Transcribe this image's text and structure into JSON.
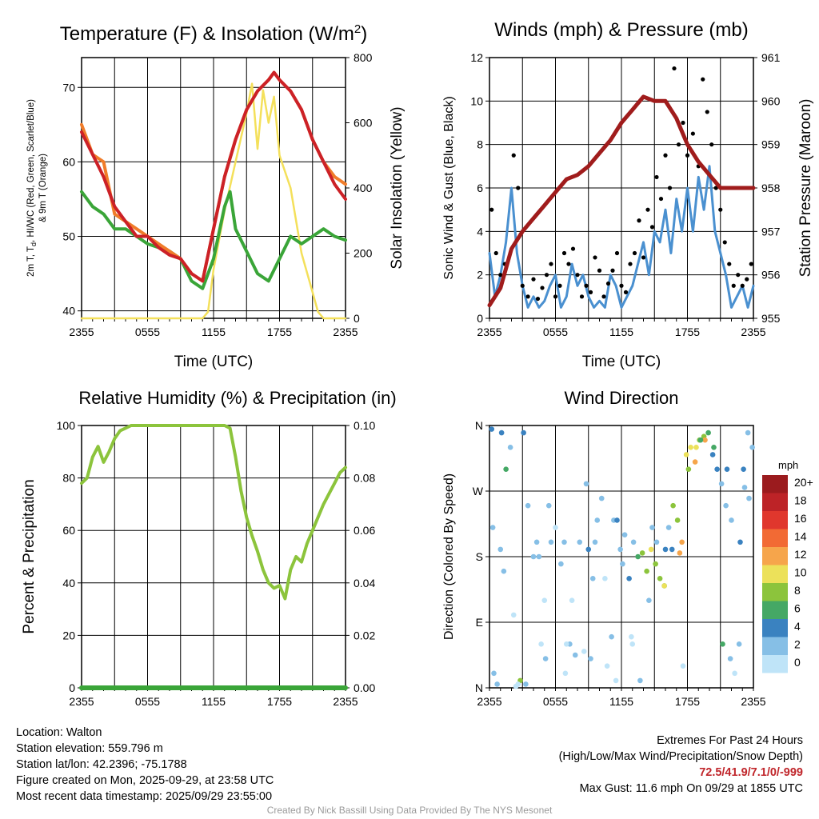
{
  "chart_data": [
    {
      "id": "temp",
      "type": "line",
      "title_text": "Temperature (F) & Insolation (W/m",
      "title_sup": "2",
      "title_close": ")",
      "xlabel": "Time (UTC)",
      "ylabel_lines": [
        "2m T, T",
        "d",
        ", HI/WC (Red, Green, Scarlet/Blue)",
        "& 9m T (Orange)"
      ],
      "ylabel_right": "Solar Insolation (Yellow)",
      "x_ticks": [
        "2355",
        "0555",
        "1155",
        "1755",
        "2355"
      ],
      "x_range": [
        0,
        24
      ],
      "ylim": [
        39,
        74
      ],
      "y_ticks": [
        40,
        50,
        60,
        70
      ],
      "ylim_right": [
        0,
        800
      ],
      "y_ticks_right": [
        0,
        200,
        400,
        600,
        800
      ],
      "series": [
        {
          "name": "9m T",
          "color": "#f07c2a",
          "axis": "left",
          "width": 4,
          "x": [
            0,
            1,
            2,
            3,
            4,
            5,
            6,
            7,
            8,
            9,
            10,
            11,
            12,
            13,
            14,
            15,
            16,
            17,
            17.5,
            18,
            19,
            20,
            21,
            22,
            23,
            24
          ],
          "y": [
            65,
            61,
            60,
            53,
            52,
            51,
            50,
            49,
            48,
            47,
            45,
            44,
            51,
            58,
            63,
            67,
            69.5,
            71,
            72,
            71,
            69.5,
            67,
            63,
            60,
            58,
            57
          ]
        },
        {
          "name": "2m T",
          "color": "#cc2127",
          "axis": "left",
          "width": 4,
          "x": [
            0,
            1,
            2,
            3,
            4,
            5,
            6,
            7,
            8,
            9,
            10,
            11,
            12,
            13,
            14,
            15,
            16,
            17,
            17.5,
            18,
            19,
            20,
            21,
            22,
            23,
            24
          ],
          "y": [
            64,
            61,
            58,
            54,
            52,
            50,
            50,
            48.5,
            47.5,
            47,
            45,
            44,
            51,
            58,
            63,
            67,
            69.5,
            71,
            72,
            71,
            69.5,
            67,
            63,
            60,
            57,
            55
          ]
        },
        {
          "name": "T d",
          "color": "#3aa538",
          "axis": "left",
          "width": 4,
          "x": [
            0,
            1,
            2,
            3,
            4,
            5,
            6,
            7,
            8,
            9,
            10,
            11,
            12,
            13,
            13.5,
            14,
            15,
            16,
            17,
            18,
            19,
            20,
            21,
            22,
            23,
            24
          ],
          "y": [
            56,
            54,
            53,
            51,
            51,
            50,
            49,
            48.5,
            48,
            47,
            44,
            43,
            47,
            54,
            56,
            51,
            48,
            45,
            44,
            47,
            50,
            49,
            50,
            51,
            50,
            49.5
          ]
        },
        {
          "name": "Solar Insolation",
          "color": "#f4e05b",
          "axis": "right",
          "width": 2.5,
          "x": [
            0,
            1,
            2,
            3,
            4,
            5,
            6,
            7,
            8,
            9,
            10,
            11,
            11.5,
            12,
            13,
            14,
            15,
            15.5,
            16,
            16.5,
            17,
            17.5,
            18,
            19,
            20,
            21,
            21.5,
            22,
            23,
            24
          ],
          "y": [
            0,
            0,
            0,
            0,
            0,
            0,
            0,
            0,
            0,
            0,
            0,
            0,
            20,
            150,
            330,
            480,
            630,
            720,
            520,
            700,
            600,
            680,
            500,
            400,
            200,
            80,
            20,
            0,
            0,
            0
          ]
        }
      ]
    },
    {
      "id": "wind",
      "type": "line",
      "title": "Winds (mph) & Pressure (mb)",
      "xlabel": "Time (UTC)",
      "ylabel": "Sonic Wind & Gust (Blue, Black)",
      "ylabel_right": "Station Pressure (Maroon)",
      "x_ticks": [
        "2355",
        "0555",
        "1155",
        "1755",
        "2355"
      ],
      "x_range": [
        0,
        24
      ],
      "ylim": [
        0,
        12
      ],
      "y_ticks": [
        0,
        2,
        4,
        6,
        8,
        10,
        12
      ],
      "ylim_right": [
        955,
        961
      ],
      "y_ticks_right": [
        955,
        956,
        957,
        958,
        959,
        960,
        961
      ],
      "series": [
        {
          "name": "Sonic Wind",
          "color": "#4a90d0",
          "axis": "left",
          "width": 3,
          "x": [
            0,
            0.5,
            1,
            1.5,
            2,
            2.5,
            3,
            3.5,
            4,
            4.5,
            5,
            5.5,
            6,
            6.5,
            7,
            7.5,
            8,
            8.5,
            9,
            9.5,
            10,
            10.5,
            11,
            11.5,
            12,
            12.5,
            13,
            13.5,
            14,
            14.5,
            15,
            15.5,
            16,
            16.5,
            17,
            17.5,
            18,
            18.5,
            19,
            19.5,
            20,
            20.5,
            21,
            21.5,
            22,
            22.5,
            23,
            23.5,
            24
          ],
          "y": [
            3,
            1,
            2,
            3.5,
            6,
            3,
            1.5,
            0.5,
            1,
            0.5,
            0.8,
            1.5,
            2,
            0.5,
            1,
            2.5,
            1.5,
            2,
            1,
            0.5,
            0.8,
            0.5,
            2,
            1.5,
            0.5,
            1,
            1.5,
            2.5,
            3.5,
            2,
            4,
            3.5,
            5,
            3,
            5.5,
            4,
            6,
            4,
            6.5,
            5,
            7,
            4,
            3,
            2,
            0.5,
            1,
            1.5,
            0.5,
            1.5
          ]
        },
        {
          "name": "Gust",
          "color": "#000000",
          "axis": "left",
          "kind": "points",
          "x": [
            0.2,
            0.6,
            1.0,
            1.4,
            2.2,
            2.6,
            3.0,
            3.5,
            4.0,
            4.4,
            4.8,
            5.2,
            5.6,
            6.0,
            6.4,
            6.8,
            7.2,
            7.6,
            8.0,
            8.4,
            8.8,
            9.2,
            9.6,
            10.0,
            10.4,
            10.8,
            11.2,
            11.6,
            12.0,
            12.4,
            12.8,
            13.2,
            13.6,
            14.0,
            14.4,
            14.8,
            15.2,
            15.6,
            16.0,
            16.4,
            16.8,
            17.2,
            17.6,
            18.0,
            18.5,
            19.0,
            19.4,
            19.8,
            20.2,
            20.6,
            21.0,
            21.4,
            21.8,
            22.2,
            22.6,
            23.0,
            23.4,
            23.8
          ],
          "y": [
            5,
            3,
            2,
            2.5,
            7.5,
            6,
            1.5,
            1,
            1.8,
            0.9,
            1.4,
            2,
            2.5,
            1,
            1.5,
            3,
            2.5,
            3.2,
            2,
            1,
            1.5,
            1.2,
            2.8,
            2.2,
            1,
            1.6,
            2.2,
            3,
            1.5,
            1.2,
            2.5,
            3,
            4.5,
            2.8,
            5,
            4.2,
            6.5,
            5.5,
            7.5,
            6,
            11.5,
            8,
            9,
            7.5,
            8.5,
            7,
            11,
            9.5,
            8,
            6,
            5,
            3.5,
            2.5,
            1.5,
            2,
            1.5,
            1.8,
            2.5
          ]
        },
        {
          "name": "Station Pressure",
          "color": "#a01c1c",
          "axis": "right",
          "width": 5,
          "x": [
            0,
            1,
            2,
            3,
            4,
            5,
            6,
            7,
            8,
            9,
            10,
            11,
            12,
            13,
            14,
            15,
            16,
            16.5,
            17,
            17.5,
            18,
            19,
            20,
            21,
            22,
            23,
            24
          ],
          "y": [
            955.3,
            955.7,
            956.6,
            957,
            957.3,
            957.6,
            957.9,
            958.2,
            958.3,
            958.5,
            958.8,
            959.1,
            959.5,
            959.8,
            960.1,
            960,
            960,
            959.8,
            959.6,
            959.3,
            959,
            958.6,
            958.3,
            958,
            958,
            958,
            958
          ]
        }
      ]
    },
    {
      "id": "rh",
      "type": "line",
      "title": "Relative Humidity (%) & Precipitation (in)",
      "ylabel": "Percent & Precipitation",
      "x_ticks": [
        "2355",
        "0555",
        "1155",
        "1755",
        "2355"
      ],
      "x_range": [
        0,
        24
      ],
      "ylim": [
        0,
        100
      ],
      "y_ticks": [
        0,
        20,
        40,
        60,
        80,
        100
      ],
      "ylim_right": [
        0,
        0.1
      ],
      "y_ticks_right": [
        "0.00",
        "0.02",
        "0.04",
        "0.06",
        "0.08",
        "0.10"
      ],
      "series": [
        {
          "name": "Relative Humidity",
          "color": "#8cc43c",
          "axis": "left",
          "width": 4,
          "x": [
            0,
            0.5,
            1,
            1.5,
            2,
            2.5,
            3,
            3.5,
            4,
            4.5,
            5,
            5.5,
            6,
            8,
            10,
            12,
            13,
            13.5,
            14,
            14.5,
            15,
            15.5,
            16,
            16.5,
            17,
            17.5,
            18,
            18.5,
            19,
            19.5,
            20,
            20.5,
            21,
            21.5,
            22,
            22.5,
            23,
            23.5,
            24
          ],
          "y": [
            78,
            80,
            88,
            92,
            86,
            90,
            95,
            98,
            99,
            100,
            100,
            100,
            100,
            100,
            100,
            100,
            100,
            99,
            88,
            75,
            65,
            58,
            52,
            45,
            40,
            38,
            39,
            34,
            45,
            50,
            48,
            55,
            60,
            65,
            70,
            74,
            78,
            82,
            84
          ]
        },
        {
          "name": "Precipitation",
          "color": "#3aa538",
          "axis": "right",
          "width": 6,
          "x": [
            0,
            24
          ],
          "y": [
            0,
            0
          ]
        }
      ]
    },
    {
      "id": "dir",
      "type": "scatter",
      "title": "Wind Direction",
      "ylabel": "Direction (Colored By Speed)",
      "x_ticks": [
        "2355",
        "0555",
        "1155",
        "1755",
        "2355"
      ],
      "x_range": [
        0,
        24
      ],
      "ylim": [
        0,
        360
      ],
      "y_tick_values": [
        0,
        90,
        180,
        270,
        360
      ],
      "y_tick_labels": [
        "N",
        "E",
        "S",
        "W",
        "N"
      ],
      "colorbar_title": "mph",
      "colorbar_labels": [
        "20+",
        "18",
        "16",
        "14",
        "12",
        "10",
        "8",
        "6",
        "4",
        "2",
        "0"
      ],
      "colorbar_colors": [
        "#9b1b1e",
        "#bd2327",
        "#e0372d",
        "#f26a34",
        "#f6a54b",
        "#ece15a",
        "#8cc43c",
        "#45a865",
        "#3a82c0",
        "#86bfe6",
        "#bfe4f8"
      ],
      "x": [
        0.2,
        0.4,
        0.7,
        1.1,
        1.5,
        1.9,
        2.4,
        2.8,
        3.1,
        3.5,
        4.0,
        4.3,
        4.7,
        5.1,
        5.6,
        6.0,
        6.5,
        6.9,
        7.3,
        7.8,
        8.2,
        8.6,
        9.0,
        9.4,
        9.8,
        10.2,
        10.7,
        11.1,
        11.5,
        11.9,
        12.3,
        12.7,
        13.1,
        13.5,
        13.9,
        14.3,
        14.7,
        15.1,
        15.5,
        15.9,
        16.3,
        16.7,
        17.1,
        17.5,
        17.9,
        18.3,
        18.7,
        19.1,
        19.5,
        19.9,
        20.3,
        20.7,
        21.1,
        21.5,
        21.9,
        22.3,
        22.7,
        23.1,
        23.5,
        23.9,
        0.3,
        1.3,
        2.2,
        3.3,
        4.5,
        5.4,
        6.8,
        7.5,
        8.8,
        9.6,
        10.5,
        11.3,
        12.1,
        12.9,
        13.7,
        14.5,
        15.2,
        15.9,
        16.6,
        17.3,
        18.1,
        18.8,
        19.6,
        20.4,
        21.2,
        22.0,
        22.8,
        23.6,
        1.0,
        2.6,
        5.0,
        7.0,
        9.2,
        11.6,
        13.0,
        14.8,
        16.0,
        17.6,
        19.2,
        21.6,
        23.2
      ],
      "y": [
        355,
        20,
        5,
        350,
        300,
        330,
        2,
        10,
        350,
        250,
        180,
        200,
        60,
        40,
        200,
        220,
        170,
        20,
        60,
        45,
        200,
        50,
        190,
        150,
        230,
        260,
        30,
        70,
        10,
        190,
        210,
        150,
        200,
        180,
        185,
        160,
        190,
        170,
        150,
        140,
        220,
        250,
        230,
        200,
        320,
        330,
        310,
        340,
        345,
        350,
        320,
        300,
        280,
        250,
        40,
        20,
        60,
        300,
        350,
        330,
        220,
        160,
        100,
        5,
        180,
        250,
        200,
        120,
        280,
        200,
        150,
        230,
        170,
        70,
        10,
        120,
        200,
        140,
        190,
        185,
        300,
        330,
        340,
        330,
        60,
        230,
        200,
        260,
        190,
        5,
        120,
        60,
        40,
        230,
        60,
        220,
        190,
        30,
        340,
        300,
        275
      ],
      "s": [
        2,
        1,
        1,
        2,
        3,
        1,
        0,
        4,
        2,
        1,
        1,
        1,
        0,
        1,
        1,
        0,
        1,
        0,
        1,
        1,
        1,
        0,
        2,
        1,
        1,
        1,
        0,
        1,
        0,
        1,
        1,
        2,
        1,
        3,
        4,
        4,
        5,
        4,
        4,
        3,
        1,
        4,
        4,
        6,
        5,
        5,
        6,
        4,
        4,
        3,
        2,
        2,
        1,
        1,
        1,
        0,
        1,
        2,
        1,
        1,
        1,
        1,
        0,
        1,
        1,
        1,
        1,
        0,
        1,
        1,
        0,
        1,
        1,
        0,
        1,
        1,
        1,
        5,
        2,
        6,
        4,
        5,
        6,
        3,
        3,
        1,
        2,
        1,
        1,
        0,
        0,
        0,
        1,
        2,
        0,
        1,
        2,
        0,
        3,
        2,
        1
      ]
    }
  ],
  "info": {
    "location": "Location: Walton",
    "elevation": "Station elevation: 559.796 m",
    "latlon": "Station lat/lon: 42.2396; -75.1788",
    "created": "Figure created on Mon, 2025-09-29, at 23:58 UTC",
    "recent": "Most recent data timestamp: 2025/09/29 23:55:00"
  },
  "extremes": {
    "title": "Extremes For Past 24 Hours",
    "subtitle": "(High/Low/Max Wind/Precipitation/Snow Depth)",
    "values": "72.5/41.9/7.1/0/-999",
    "max_gust": "Max Gust: 11.6 mph On 09/29 at 1855 UTC"
  },
  "credit": "Created By Nick Bassill Using Data Provided By The NYS Mesonet"
}
